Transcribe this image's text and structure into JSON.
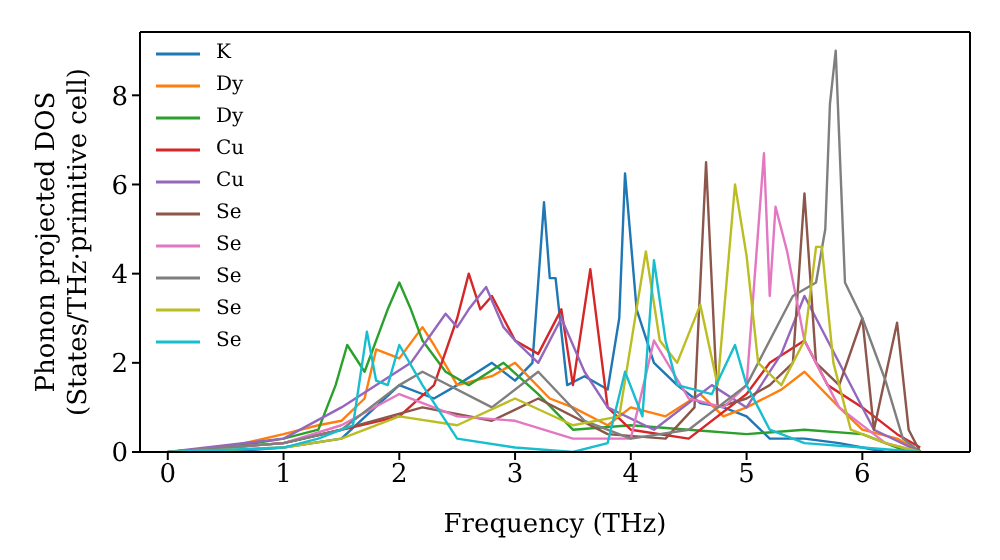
{
  "chart_data": {
    "type": "line",
    "xlabel": "Frequency (THz)",
    "ylabel": "Phonon projected DOS\n(States/THz·primitive cell)",
    "xlim": [
      -0.24,
      6.93
    ],
    "ylim": [
      0,
      9.42
    ],
    "xticks": [
      0,
      1,
      2,
      3,
      4,
      5,
      6
    ],
    "yticks": [
      0,
      2,
      4,
      6,
      8
    ],
    "legend": "top left",
    "grid": false,
    "series": [
      {
        "name": "K",
        "color": "#1f77b4",
        "x": [
          0,
          0.5,
          1,
          1.5,
          2,
          2.3,
          2.5,
          2.8,
          3,
          3.15,
          3.25,
          3.3,
          3.35,
          3.45,
          3.6,
          3.8,
          3.9,
          3.95,
          4.05,
          4.2,
          4.4,
          4.6,
          4.8,
          5,
          5.2,
          5.5,
          5.8,
          6,
          6.2,
          6.5
        ],
        "values": [
          0,
          0,
          0.1,
          0.3,
          1.5,
          1.2,
          1.5,
          2,
          1.6,
          2,
          5.6,
          3.9,
          3.9,
          1.5,
          1.7,
          1.4,
          3,
          6.25,
          3.2,
          2,
          1.5,
          1.1,
          1,
          0.8,
          0.3,
          0.3,
          0.2,
          0.1,
          0,
          0
        ]
      },
      {
        "name": "Dy",
        "color": "#ff7f0e",
        "x": [
          0,
          0.5,
          1,
          1.3,
          1.5,
          1.7,
          1.8,
          2,
          2.2,
          2.3,
          2.5,
          2.8,
          3,
          3.3,
          3.5,
          3.8,
          4,
          4.3,
          4.6,
          4.8,
          5,
          5.3,
          5.5,
          5.8,
          6,
          6.3,
          6.5
        ],
        "values": [
          0,
          0.1,
          0.4,
          0.6,
          0.7,
          1.2,
          2.3,
          2.1,
          2.8,
          2.4,
          1.5,
          1.7,
          2,
          1.2,
          1,
          0.6,
          1,
          0.8,
          1.3,
          0.8,
          1,
          1.4,
          1.8,
          1,
          0.5,
          0.3,
          0
        ]
      },
      {
        "name": "Dy",
        "color": "#2ca02c",
        "x": [
          0,
          0.5,
          1,
          1.3,
          1.45,
          1.55,
          1.7,
          1.9,
          2,
          2.1,
          2.2,
          2.4,
          2.6,
          2.9,
          3.2,
          3.5,
          4,
          4.5,
          5,
          5.5,
          6,
          6.2,
          6.4
        ],
        "values": [
          0,
          0.1,
          0.3,
          0.5,
          1.5,
          2.4,
          1.8,
          3.2,
          3.8,
          3.2,
          2.5,
          1.8,
          1.5,
          2,
          1.3,
          0.5,
          0.6,
          0.5,
          0.4,
          0.5,
          0.4,
          0.2,
          0
        ]
      },
      {
        "name": "Cu",
        "color": "#d62728",
        "x": [
          0,
          1,
          1.5,
          2,
          2.3,
          2.5,
          2.6,
          2.7,
          2.8,
          3,
          3.2,
          3.4,
          3.5,
          3.65,
          3.8,
          4,
          4.5,
          5,
          5.2,
          5.5,
          5.7,
          6,
          6.3,
          6.5
        ],
        "values": [
          0,
          0.2,
          0.5,
          0.8,
          1.5,
          3,
          4,
          3.2,
          3.5,
          2.5,
          2.2,
          3.2,
          1.5,
          4.1,
          1,
          0.5,
          0.3,
          1.3,
          2,
          2.5,
          1.5,
          1,
          0.4,
          0.1
        ]
      },
      {
        "name": "Cu",
        "color": "#9467bd",
        "x": [
          0,
          1,
          1.5,
          2.1,
          2.4,
          2.5,
          2.6,
          2.75,
          2.9,
          3,
          3.2,
          3.4,
          3.6,
          3.8,
          4.2,
          4.7,
          5,
          5.3,
          5.5,
          5.7,
          6.1,
          6.5
        ],
        "values": [
          0,
          0.3,
          1,
          2,
          3.1,
          2.8,
          3.2,
          3.7,
          2.8,
          2.5,
          2,
          3,
          1.8,
          1,
          0.5,
          1.5,
          1,
          2.2,
          3.5,
          2.5,
          0.5,
          0
        ]
      },
      {
        "name": "Se",
        "color": "#8c564b",
        "x": [
          0,
          1,
          1.5,
          2.2,
          2.8,
          3.2,
          3.8,
          4.3,
          4.55,
          4.65,
          4.75,
          5,
          5.2,
          5.4,
          5.5,
          5.6,
          5.8,
          6,
          6.1,
          6.3,
          6.4,
          6.5
        ],
        "values": [
          0,
          0.2,
          0.5,
          1,
          0.7,
          1.2,
          0.4,
          0.3,
          1,
          6.5,
          1,
          1.2,
          1.5,
          2,
          5.8,
          2,
          1.5,
          3,
          0.5,
          2.9,
          0.5,
          0
        ]
      },
      {
        "name": "Se",
        "color": "#e377c2",
        "x": [
          0,
          1,
          1.5,
          2,
          2.5,
          3,
          3.5,
          4,
          4.2,
          4.5,
          4.8,
          5,
          5.15,
          5.2,
          5.25,
          5.35,
          5.5,
          5.8,
          6.2,
          6.5
        ],
        "values": [
          0,
          0.2,
          0.6,
          1.3,
          0.8,
          0.7,
          0.3,
          0.3,
          2.5,
          1.2,
          1,
          1.5,
          6.7,
          3.5,
          5.5,
          4.5,
          2.5,
          1,
          0.2,
          0
        ]
      },
      {
        "name": "Se",
        "color": "#7f7f7f",
        "x": [
          0,
          1,
          1.5,
          2,
          2.2,
          2.8,
          3.2,
          3.6,
          4,
          4.5,
          5,
          5.3,
          5.4,
          5.6,
          5.68,
          5.72,
          5.77,
          5.85,
          6,
          6.2,
          6.35,
          6.5
        ],
        "values": [
          0,
          0.2,
          0.5,
          1.5,
          1.8,
          1,
          1.8,
          0.7,
          0.3,
          0.5,
          1.5,
          3,
          3.5,
          3.8,
          5,
          7.8,
          9,
          3.8,
          3,
          1.6,
          0.3,
          0
        ]
      },
      {
        "name": "Se",
        "color": "#bcbd22",
        "x": [
          0,
          1,
          1.5,
          2,
          2.5,
          3,
          3.5,
          3.9,
          4.13,
          4.25,
          4.4,
          4.6,
          4.75,
          4.9,
          5,
          5.1,
          5.3,
          5.5,
          5.6,
          5.65,
          5.75,
          5.9,
          6.2,
          6.5
        ],
        "values": [
          0,
          0.1,
          0.3,
          0.8,
          0.6,
          1.2,
          0.6,
          0.8,
          4.5,
          2.5,
          2,
          3.3,
          1.5,
          6,
          4.4,
          2,
          1.5,
          2.5,
          4.6,
          4.6,
          2,
          0.5,
          0.2,
          0
        ]
      },
      {
        "name": "Se",
        "color": "#17becf",
        "x": [
          0,
          1,
          1.3,
          1.6,
          1.72,
          1.8,
          1.9,
          2,
          2.2,
          2.5,
          3,
          3.5,
          3.8,
          3.95,
          4.1,
          4.2,
          4.3,
          4.4,
          4.7,
          4.9,
          5,
          5.2,
          5.5,
          6,
          6.5
        ],
        "values": [
          0,
          0.1,
          0.3,
          0.6,
          2.7,
          1.6,
          1.5,
          2.4,
          1.5,
          0.3,
          0.1,
          0,
          0.2,
          1.8,
          0.8,
          4.3,
          2.5,
          1.5,
          1.3,
          2.4,
          1.5,
          0.5,
          0.2,
          0.1,
          0
        ]
      }
    ]
  }
}
